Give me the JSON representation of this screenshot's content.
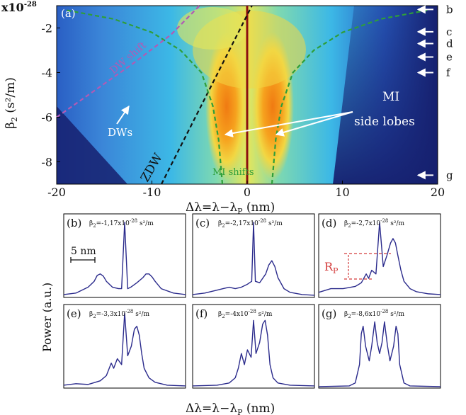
{
  "figure": {
    "top_panel": {
      "label": "(a)",
      "y_scale": "x10",
      "y_scale_exp": "-28",
      "xlabel_main": "Δλ=λ−λ",
      "xlabel_sub": "P",
      "xlabel_unit": " (nm)",
      "ylabel_main": "β",
      "ylabel_sub": "2",
      "ylabel_unit": " (s²/m)",
      "annotations": {
        "dw_shift": "DW shift",
        "dws": "DWs",
        "zdw": "ZDW",
        "mi_shifts": "MI shifts",
        "mi_side_lobes_line1": "MI",
        "mi_side_lobes_line2": "side lobes"
      },
      "arrow_labels": [
        "b",
        "c",
        "d",
        "e",
        "f",
        "g"
      ]
    },
    "bottom_panels": {
      "ylabel": "Power (a.u.)",
      "xlabel_main": "Δλ=λ−λ",
      "xlabel_sub": "P",
      "xlabel_unit": " (nm)",
      "scale_bar": "5 nm",
      "rp_main": "R",
      "rp_sub": "P"
    }
  },
  "chart_data": [
    {
      "type": "heatmap",
      "panel": "a",
      "xlabel": "Δλ=λ−λP (nm)",
      "ylabel": "β2 (s²/m)",
      "xlim": [
        -20,
        20
      ],
      "ylim": [
        -9,
        -1
      ],
      "y_multiplier": "x10^-28",
      "x_ticks": [
        "-20",
        "-10",
        "0",
        "10",
        "20"
      ],
      "x_tick_values": [
        -20,
        -10,
        0,
        10,
        20
      ],
      "y_ticks": [
        "-2",
        "-4",
        "-6",
        "-8"
      ],
      "y_tick_values": [
        -2,
        -4,
        -6,
        -8
      ],
      "colormap": [
        "#16206f",
        "#2f62c8",
        "#38b6e8",
        "#7fd9b8",
        "#e9e95a",
        "#f6a21e",
        "#e8590c"
      ],
      "lines": [
        {
          "name": "pump",
          "color": "#8b1010",
          "x": [
            0,
            0
          ],
          "y": [
            -1,
            -9
          ]
        },
        {
          "name": "ZDW",
          "color": "#111111",
          "x": [
            -9,
            0.5
          ],
          "y": [
            -9,
            -1
          ]
        },
        {
          "name": "MI shifts",
          "color": "#2e9e3a",
          "x": [
            -2.6,
            -3.0,
            -3.6,
            -4.8,
            -7,
            -10,
            -14,
            -19
          ],
          "y": [
            -9,
            -7,
            -5.5,
            -4,
            -3,
            -2.2,
            -1.6,
            -1.2
          ]
        },
        {
          "name": "DW shift",
          "color": "#b25ab5",
          "x": [
            -20,
            -16,
            -12,
            -8,
            -5
          ],
          "y": [
            -6,
            -4.8,
            -3.6,
            -2.3,
            -1
          ]
        }
      ],
      "arrows_beta2": [
        -1.17,
        -2.17,
        -2.7,
        -3.3,
        -4,
        -8.6
      ]
    },
    {
      "type": "line",
      "panel": "b",
      "label": "(b)",
      "caption_main": "β",
      "caption_sub": "2",
      "caption_value": "=-1,17x10",
      "caption_exp": "-28",
      "caption_unit": " s²/m",
      "series": [
        {
          "color": "#2b2b8c",
          "x": [
            -10,
            -8,
            -6,
            -5,
            -4.5,
            -4,
            -3.5,
            -3,
            -2,
            -1,
            -0.5,
            0,
            0.5,
            1,
            2,
            3,
            3.5,
            4,
            4.5,
            5,
            6,
            8,
            10
          ],
          "y": [
            0.02,
            0.04,
            0.12,
            0.2,
            0.28,
            0.3,
            0.27,
            0.2,
            0.12,
            0.1,
            0.1,
            1.0,
            0.1,
            0.12,
            0.18,
            0.25,
            0.3,
            0.3,
            0.26,
            0.2,
            0.1,
            0.04,
            0.02
          ]
        }
      ]
    },
    {
      "type": "line",
      "panel": "c",
      "label": "(c)",
      "caption_main": "β",
      "caption_sub": "2",
      "caption_value": "=-2,17x10",
      "caption_exp": "-28",
      "caption_unit": " s²/m",
      "series": [
        {
          "color": "#2b2b8c",
          "x": [
            -10,
            -8,
            -6,
            -5,
            -4,
            -3,
            -2,
            -1,
            -0.3,
            0,
            0.3,
            1,
            2,
            2.5,
            3,
            3.5,
            4,
            5,
            6,
            8,
            10
          ],
          "y": [
            0.02,
            0.04,
            0.08,
            0.1,
            0.12,
            0.1,
            0.12,
            0.16,
            0.2,
            1.0,
            0.2,
            0.18,
            0.3,
            0.42,
            0.48,
            0.4,
            0.25,
            0.1,
            0.05,
            0.02,
            0.01
          ]
        }
      ]
    },
    {
      "type": "line",
      "panel": "d",
      "label": "(d)",
      "caption_main": "β",
      "caption_sub": "2",
      "caption_value": "=-2,7x10",
      "caption_exp": "-28",
      "caption_unit": " s²/m",
      "series": [
        {
          "color": "#2b2b8c",
          "x": [
            -10,
            -8,
            -6,
            -4,
            -3,
            -2.2,
            -1.8,
            -1.3,
            -0.6,
            0,
            0.6,
            1.2,
            1.8,
            2.2,
            2.6,
            3,
            3.5,
            4,
            5,
            6,
            8,
            10
          ],
          "y": [
            0.05,
            0.1,
            0.1,
            0.13,
            0.18,
            0.3,
            0.24,
            0.35,
            0.3,
            1.0,
            0.4,
            0.55,
            0.72,
            0.78,
            0.72,
            0.55,
            0.35,
            0.2,
            0.1,
            0.06,
            0.03,
            0.02
          ]
        }
      ]
    },
    {
      "type": "line",
      "panel": "e",
      "label": "(e)",
      "caption_main": "β",
      "caption_sub": "2",
      "caption_value": "=-3,3x10",
      "caption_exp": "-28",
      "caption_unit": " s²/m",
      "series": [
        {
          "color": "#2b2b8c",
          "x": [
            -10,
            -8,
            -6,
            -4,
            -3,
            -2.2,
            -1.8,
            -1.2,
            -0.5,
            0,
            0.5,
            1.1,
            1.6,
            2,
            2.4,
            2.8,
            3.2,
            4,
            5,
            7,
            10
          ],
          "y": [
            0.02,
            0.04,
            0.03,
            0.08,
            0.15,
            0.32,
            0.25,
            0.38,
            0.3,
            1.0,
            0.42,
            0.55,
            0.78,
            0.82,
            0.7,
            0.45,
            0.25,
            0.12,
            0.06,
            0.02,
            0.01
          ]
        }
      ]
    },
    {
      "type": "line",
      "panel": "f",
      "label": "(f)",
      "caption_main": "β",
      "caption_sub": "2",
      "caption_value": "=-4x10",
      "caption_exp": "-28",
      "caption_unit": " s²/m",
      "series": [
        {
          "color": "#2b2b8c",
          "x": [
            -10,
            -6,
            -4,
            -3,
            -2.5,
            -2,
            -1.5,
            -1,
            -0.4,
            0,
            0.4,
            1,
            1.5,
            1.9,
            2.3,
            2.7,
            3.2,
            4,
            6,
            10
          ],
          "y": [
            0.01,
            0.02,
            0.05,
            0.12,
            0.25,
            0.45,
            0.3,
            0.5,
            0.4,
            0.9,
            0.45,
            0.6,
            0.85,
            0.9,
            0.7,
            0.3,
            0.12,
            0.05,
            0.02,
            0.01
          ]
        }
      ]
    },
    {
      "type": "line",
      "panel": "g",
      "label": "(g)",
      "caption_main": "β",
      "caption_sub": "2",
      "caption_value": "=-8,6x10",
      "caption_exp": "-28",
      "caption_unit": " s²/m",
      "series": [
        {
          "color": "#2b2b8c",
          "x": [
            -10,
            -5,
            -4,
            -3.3,
            -3,
            -2.7,
            -2.3,
            -1.7,
            -1.3,
            -0.8,
            -0.4,
            0,
            0.4,
            0.8,
            1.3,
            1.7,
            2.3,
            2.7,
            3,
            3.3,
            4,
            5,
            10
          ],
          "y": [
            0.0,
            0.01,
            0.05,
            0.3,
            0.72,
            0.82,
            0.55,
            0.35,
            0.55,
            0.88,
            0.6,
            0.45,
            0.6,
            0.88,
            0.55,
            0.35,
            0.55,
            0.82,
            0.72,
            0.3,
            0.05,
            0.01,
            0.0
          ]
        }
      ]
    }
  ]
}
